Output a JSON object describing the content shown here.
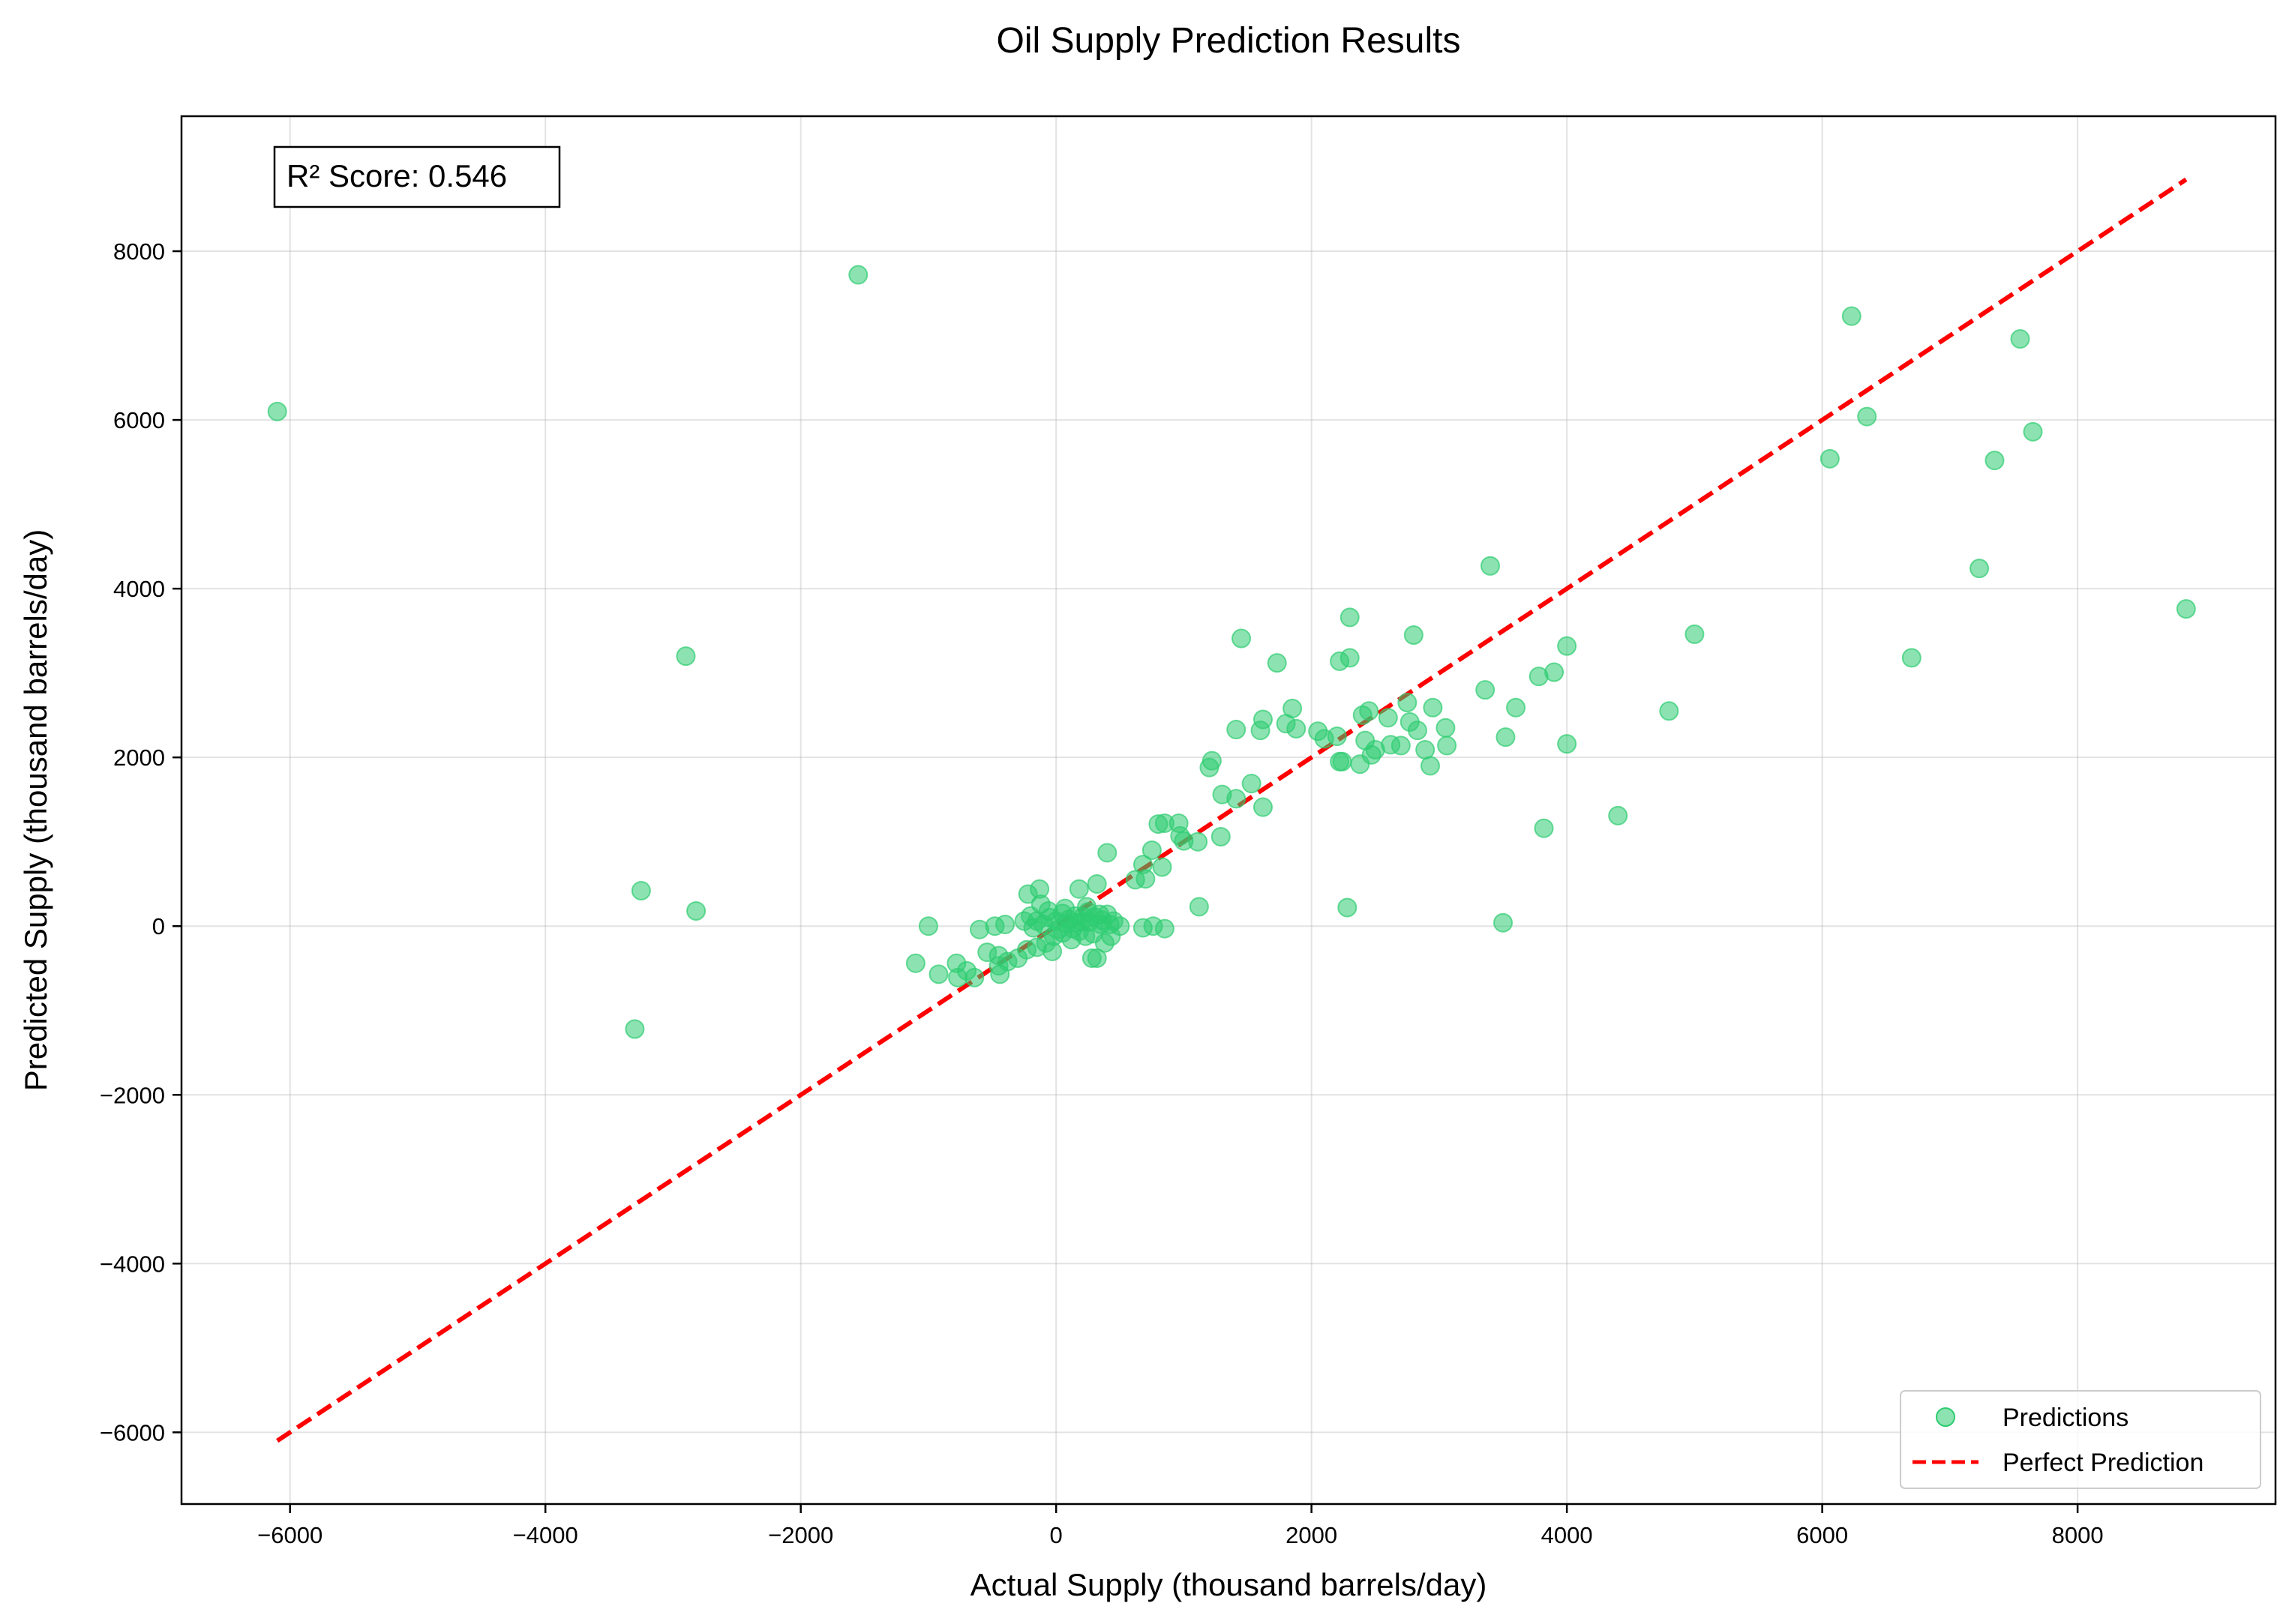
{
  "chart_data": {
    "type": "scatter",
    "title": "Oil Supply Prediction Results",
    "xlabel": "Actual Supply (thousand barrels/day)",
    "ylabel": "Predicted Supply (thousand barrels/day)",
    "xlim": [
      -6850,
      9550
    ],
    "ylim": [
      -6850,
      9600
    ],
    "xticks": [
      -6000,
      -4000,
      -2000,
      0,
      2000,
      4000,
      6000,
      8000
    ],
    "yticks": [
      -6000,
      -4000,
      -2000,
      0,
      2000,
      4000,
      6000,
      8000
    ],
    "xtick_labels": [
      "−6000",
      "−4000",
      "−2000",
      "0",
      "2000",
      "4000",
      "6000",
      "8000"
    ],
    "ytick_labels": [
      "−6000",
      "−4000",
      "−2000",
      "0",
      "2000",
      "4000",
      "6000",
      "8000"
    ],
    "grid": true,
    "legend_position": "bottom-right",
    "annotation": "R² Score: 0.546",
    "series": [
      {
        "name": "Predictions",
        "kind": "scatter",
        "color": "#2ecc71",
        "points": [
          [
            -6100,
            6100
          ],
          [
            -1550,
            7720
          ],
          [
            -2900,
            3200
          ],
          [
            -3250,
            420
          ],
          [
            -2820,
            180
          ],
          [
            -3300,
            -1220
          ],
          [
            6230,
            7230
          ],
          [
            7550,
            6960
          ],
          [
            6350,
            6040
          ],
          [
            6060,
            5540
          ],
          [
            7350,
            5520
          ],
          [
            7650,
            5860
          ],
          [
            7230,
            4240
          ],
          [
            6700,
            3180
          ],
          [
            8850,
            3760
          ],
          [
            3400,
            4270
          ],
          [
            2300,
            3660
          ],
          [
            2800,
            3450
          ],
          [
            1450,
            3410
          ],
          [
            1730,
            3120
          ],
          [
            2220,
            3140
          ],
          [
            2300,
            3180
          ],
          [
            5000,
            3460
          ],
          [
            4000,
            3320
          ],
          [
            3900,
            3010
          ],
          [
            3780,
            2960
          ],
          [
            3360,
            2800
          ],
          [
            3600,
            2590
          ],
          [
            3520,
            2240
          ],
          [
            4000,
            2160
          ],
          [
            4800,
            2550
          ],
          [
            4400,
            1310
          ],
          [
            3820,
            1160
          ],
          [
            3500,
            40
          ],
          [
            2280,
            220
          ],
          [
            1850,
            2580
          ],
          [
            1800,
            2400
          ],
          [
            1880,
            2340
          ],
          [
            1620,
            2450
          ],
          [
            1600,
            2320
          ],
          [
            1410,
            2330
          ],
          [
            2050,
            2310
          ],
          [
            2200,
            2250
          ],
          [
            2100,
            2220
          ],
          [
            2220,
            1950
          ],
          [
            2240,
            1950
          ],
          [
            2380,
            1920
          ],
          [
            2400,
            2500
          ],
          [
            2450,
            2550
          ],
          [
            2600,
            2470
          ],
          [
            2750,
            2650
          ],
          [
            2770,
            2420
          ],
          [
            2830,
            2320
          ],
          [
            2420,
            2200
          ],
          [
            2500,
            2090
          ],
          [
            2620,
            2150
          ],
          [
            2700,
            2140
          ],
          [
            2950,
            2590
          ],
          [
            3050,
            2350
          ],
          [
            2890,
            2090
          ],
          [
            3060,
            2140
          ],
          [
            2930,
            1900
          ],
          [
            2470,
            2030
          ],
          [
            1220,
            1960
          ],
          [
            1200,
            1880
          ],
          [
            1300,
            1560
          ],
          [
            1410,
            1510
          ],
          [
            1530,
            1690
          ],
          [
            1620,
            1410
          ],
          [
            850,
            1220
          ],
          [
            800,
            1210
          ],
          [
            960,
            1220
          ],
          [
            970,
            1070
          ],
          [
            1000,
            1010
          ],
          [
            1110,
            1000
          ],
          [
            1290,
            1060
          ],
          [
            830,
            700
          ],
          [
            750,
            900
          ],
          [
            680,
            730
          ],
          [
            620,
            550
          ],
          [
            700,
            560
          ],
          [
            400,
            870
          ],
          [
            1120,
            230
          ],
          [
            850,
            -30
          ],
          [
            760,
            0
          ],
          [
            680,
            -20
          ],
          [
            320,
            500
          ],
          [
            180,
            440
          ],
          [
            -130,
            440
          ],
          [
            -220,
            380
          ],
          [
            -120,
            260
          ],
          [
            -1000,
            0
          ],
          [
            -600,
            -40
          ],
          [
            -480,
            0
          ],
          [
            -400,
            20
          ],
          [
            -1100,
            -440
          ],
          [
            -920,
            -570
          ],
          [
            -780,
            -440
          ],
          [
            -700,
            -530
          ],
          [
            -770,
            -610
          ],
          [
            -640,
            -610
          ],
          [
            -540,
            -310
          ],
          [
            -450,
            -350
          ],
          [
            -380,
            -420
          ],
          [
            -450,
            -470
          ],
          [
            -440,
            -570
          ],
          [
            -300,
            -380
          ],
          [
            -230,
            -280
          ],
          [
            -150,
            -250
          ],
          [
            -80,
            -200
          ],
          [
            -20,
            -120
          ],
          [
            -250,
            60
          ],
          [
            -200,
            120
          ],
          [
            -150,
            60
          ],
          [
            -100,
            20
          ],
          [
            -50,
            100
          ],
          [
            0,
            60
          ],
          [
            50,
            150
          ],
          [
            100,
            80
          ],
          [
            150,
            120
          ],
          [
            200,
            50
          ],
          [
            250,
            170
          ],
          [
            300,
            110
          ],
          [
            350,
            20
          ],
          [
            400,
            140
          ],
          [
            450,
            60
          ],
          [
            500,
            0
          ],
          [
            50,
            -80
          ],
          [
            120,
            -160
          ],
          [
            180,
            -60
          ],
          [
            230,
            -120
          ],
          [
            280,
            -380
          ],
          [
            320,
            -380
          ],
          [
            380,
            -200
          ],
          [
            430,
            -120
          ],
          [
            -30,
            -300
          ],
          [
            20,
            -40
          ],
          [
            80,
            30
          ],
          [
            130,
            -30
          ],
          [
            210,
            110
          ],
          [
            260,
            50
          ],
          [
            340,
            140
          ],
          [
            -180,
            -20
          ],
          [
            -60,
            180
          ],
          [
            70,
            210
          ],
          [
            160,
            40
          ],
          [
            240,
            230
          ],
          [
            290,
            -90
          ],
          [
            360,
            70
          ],
          [
            420,
            20
          ]
        ]
      },
      {
        "name": "Perfect Prediction",
        "kind": "line",
        "color": "#ff0000",
        "dash": "dashed",
        "points": [
          [
            -6100,
            -6100
          ],
          [
            8850,
            8850
          ]
        ]
      }
    ]
  }
}
